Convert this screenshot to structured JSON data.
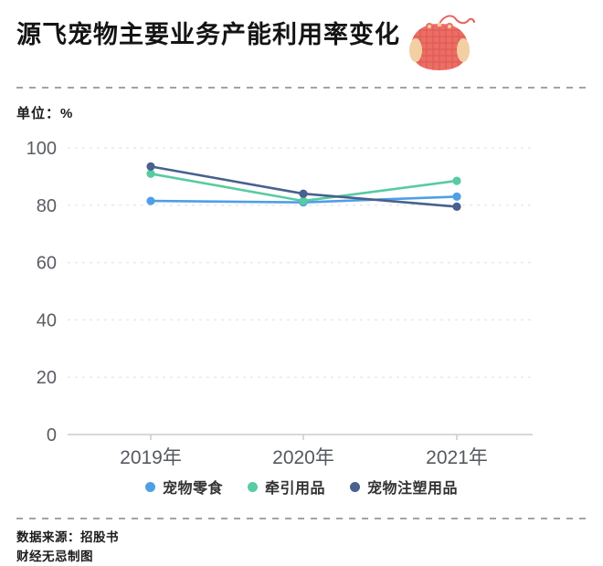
{
  "title": "源飞宠物主要业务产能利用率变化",
  "unit_label": "单位：%",
  "source_line1": "数据来源：招股书",
  "source_line2": "财经无忌制图",
  "icon": {
    "name": "pet-harness-icon",
    "body_color": "#EC6D64",
    "grid_color": "#D95752",
    "trim_color": "#F3CFA4",
    "leash_color": "#E4635E"
  },
  "colors": {
    "divider": "#a3a3a3",
    "gridline": "#e9e9eb",
    "axis_line": "#c8cbd0",
    "axis_text": "#595c63",
    "legend_text": "#333333"
  },
  "chart_data": {
    "type": "line",
    "categories": [
      "2019年",
      "2020年",
      "2021年"
    ],
    "series": [
      {
        "name": "宠物零食",
        "color": "#4F9FE6",
        "values": [
          81.5,
          81,
          83
        ]
      },
      {
        "name": "牵引用品",
        "color": "#57CBA1",
        "values": [
          91,
          81.5,
          88.5
        ]
      },
      {
        "name": "宠物注塑用品",
        "color": "#48618E",
        "values": [
          93.5,
          84,
          79.5
        ]
      }
    ],
    "title": "源飞宠物主要业务产能利用率变化",
    "xlabel": "",
    "ylabel": "单位：%",
    "ylim": [
      0,
      100
    ],
    "yticks": [
      0,
      20,
      40,
      60,
      80,
      100
    ],
    "grid": "horizontal dashed",
    "legend_position": "bottom"
  }
}
